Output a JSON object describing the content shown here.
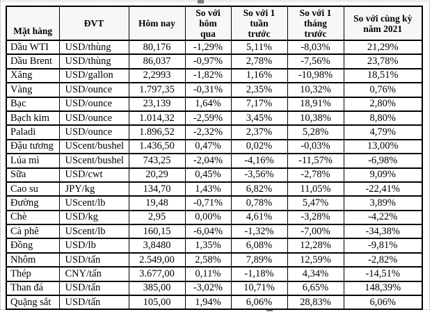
{
  "table": {
    "columns": [
      {
        "label": "Mặt hàng",
        "label_lines": [
          "Mặt hàng"
        ]
      },
      {
        "label": "ĐVT",
        "label_lines": [
          "ĐVT"
        ]
      },
      {
        "label": "Hôm nay",
        "label_lines": [
          "Hôm nay"
        ]
      },
      {
        "label": "So với hôm qua",
        "label_lines": [
          "So với",
          "hôm",
          "qua"
        ]
      },
      {
        "label": "So với 1 tuần trước",
        "label_lines": [
          "So với 1",
          "tuần",
          "trước"
        ]
      },
      {
        "label": "So với 1 tháng trước",
        "label_lines": [
          "So với 1",
          "tháng",
          "trước"
        ]
      },
      {
        "label": "So với cùng kỳ năm 2021",
        "label_lines": [
          "So với cùng kỳ",
          "năm 2021"
        ]
      }
    ],
    "rows": [
      [
        "Dầu WTI",
        "USD/thùng",
        "80,176",
        "-1,29%",
        "5,11%",
        "-8,03%",
        "21,29%"
      ],
      [
        "Dầu Brent",
        "USD/thùng",
        "86,037",
        "-0,97%",
        "2,78%",
        "-7,56%",
        "23,78%"
      ],
      [
        "Xăng",
        "USD/gallon",
        "2,2993",
        "-1,82%",
        "1,16%",
        "-10,98%",
        "18,51%"
      ],
      [
        "Vàng",
        "USD/ounce",
        "1.797,35",
        "-0,31%",
        "2,35%",
        "10,32%",
        "0,76%"
      ],
      [
        "Bạc",
        "USD/ounce",
        "23,139",
        "1,64%",
        "7,17%",
        "18,91%",
        "2,80%"
      ],
      [
        "Bạch kim",
        "USD/ounce",
        "1.014,32",
        "-2,59%",
        "3,45%",
        "10,38%",
        "8,80%"
      ],
      [
        "Paladi",
        "USD/ounce",
        "1.896,52",
        "-2,32%",
        "2,37%",
        "5,28%",
        "4,79%"
      ],
      [
        "Đậu tương",
        "UScent/bushel",
        "1.436,50",
        "0,47%",
        "0,02%",
        "-0,03%",
        "13,00%"
      ],
      [
        "Lúa mì",
        "UScent/bushel",
        "743,25",
        "-2,04%",
        "-4,16%",
        "-11,57%",
        "-6,98%"
      ],
      [
        "Sữa",
        "USD/cwt",
        "20,29",
        "0,45%",
        "-3,56%",
        "-2,78%",
        "9,09%"
      ],
      [
        "Cao su",
        "JPY/kg",
        "134,70",
        "1,43%",
        "6,82%",
        "11,05%",
        "-22,41%"
      ],
      [
        "Đường",
        "UScent/lb",
        "19,48",
        "-0,71%",
        "0,78%",
        "5,47%",
        "3,89%"
      ],
      [
        "Chè",
        "USD/kg",
        "2,95",
        "0,00%",
        "4,61%",
        "-3,28%",
        "-4,22%"
      ],
      [
        "Cà phê",
        "UScent/lb",
        "160,15",
        "-6,04%",
        "-1,32%",
        "-7,00%",
        "-34,38%"
      ],
      [
        "Đồng",
        "USD/lb",
        "3,8480",
        "1,35%",
        "6,08%",
        "12,28%",
        "-9,81%"
      ],
      [
        "Nhôm",
        "USD/tấn",
        "2.549,00",
        "2,58%",
        "7,89%",
        "12,59%",
        "-2,82%"
      ],
      [
        "Thép",
        "CNY/tấn",
        "3.677,00",
        "0,11%",
        "-1,18%",
        "4,34%",
        "-14,51%"
      ],
      [
        "Than đá",
        "USD/tấn",
        "385,00",
        "-3,02%",
        "10,71%",
        "6,65%",
        "148,39%"
      ],
      [
        "Quặng sắt",
        "USD/tấn",
        "105,00",
        "1,94%",
        "6,06%",
        "28,83%",
        "6,06%"
      ]
    ]
  },
  "colors": {
    "table_border": "#000000",
    "header_bg": "#f7f7f7",
    "marquee": "#9e9e9e"
  }
}
